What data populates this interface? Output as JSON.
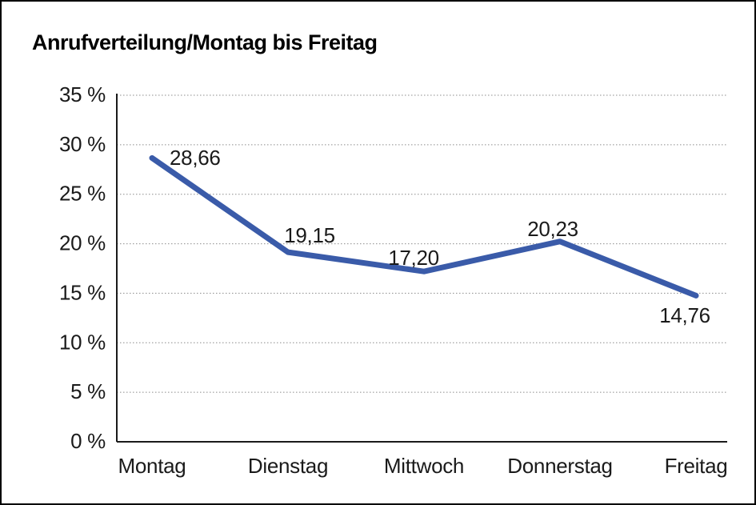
{
  "window": {
    "background": "#ffffff",
    "border_color": "#000000"
  },
  "chart_data": {
    "type": "line",
    "title": "Anrufverteilung/Montag bis Freitag",
    "categories": [
      "Montag",
      "Dienstag",
      "Mittwoch",
      "Donnerstag",
      "Freitag"
    ],
    "series": [
      {
        "name": "Anrufverteilung",
        "values": [
          28.66,
          19.15,
          17.2,
          20.23,
          14.76
        ],
        "value_labels": [
          "28,66",
          "19,15",
          "17,20",
          "20,23",
          "14,76"
        ],
        "color": "#3A5BA9"
      }
    ],
    "xlabel": "",
    "ylabel": "",
    "ylim": [
      0,
      35
    ],
    "y_ticks": [
      0,
      5,
      10,
      15,
      20,
      25,
      30,
      35
    ],
    "y_tick_labels": [
      "0 %",
      "5 %",
      "10 %",
      "15 %",
      "20 %",
      "25 %",
      "30 %",
      "35 %"
    ],
    "grid": "horizontal-dotted",
    "legend": "none",
    "axis_color": "#1a1a1a",
    "grid_color": "#8c8c8c",
    "text_color": "#1a1a1a",
    "title_color": "#000000"
  }
}
